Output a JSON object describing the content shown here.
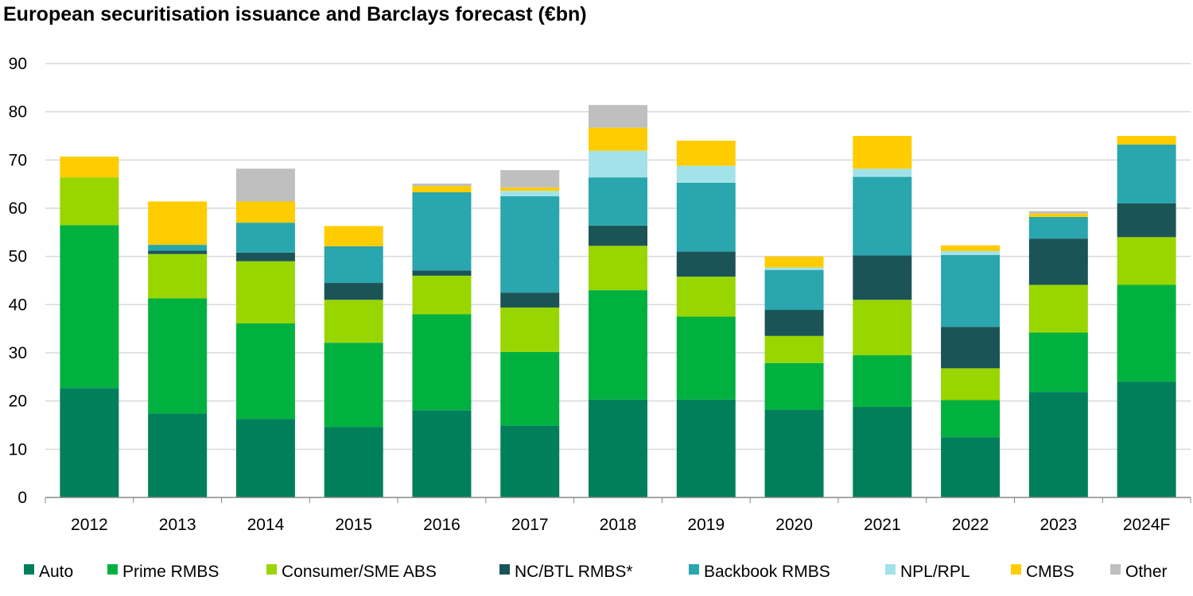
{
  "chart_data": {
    "type": "bar",
    "stacked": true,
    "title": "European securitisation issuance and Barclays forecast (€bn)",
    "xlabel": "",
    "ylabel": "",
    "ylim": [
      0,
      90
    ],
    "yticks": [
      0,
      10,
      20,
      30,
      40,
      50,
      60,
      70,
      80,
      90
    ],
    "grid": true,
    "legend_position": "bottom",
    "categories": [
      "2012",
      "2013",
      "2014",
      "2015",
      "2016",
      "2017",
      "2018",
      "2019",
      "2020",
      "2021",
      "2022",
      "2023",
      "2024F"
    ],
    "series": [
      {
        "name": "Auto",
        "color": "#007f5a",
        "values": [
          22.7,
          17.4,
          16.3,
          14.6,
          18.1,
          14.9,
          20.3,
          20.3,
          18.2,
          18.8,
          12.5,
          21.9,
          24.0
        ]
      },
      {
        "name": "Prime RMBS",
        "color": "#00b140",
        "values": [
          33.8,
          23.9,
          19.8,
          17.5,
          19.9,
          15.3,
          22.7,
          17.2,
          9.7,
          10.7,
          7.7,
          12.3,
          20.1
        ]
      },
      {
        "name": "Consumer/SME ABS",
        "color": "#99d600",
        "values": [
          9.9,
          9.2,
          12.9,
          8.9,
          8.0,
          9.2,
          9.2,
          8.3,
          5.6,
          11.5,
          6.6,
          9.9,
          9.9
        ]
      },
      {
        "name": "NC/BTL RMBS*",
        "color": "#1b5457",
        "values": [
          0,
          0.7,
          1.8,
          3.5,
          1.1,
          3.1,
          4.2,
          5.2,
          5.4,
          9.2,
          8.6,
          9.6,
          7.0
        ]
      },
      {
        "name": "Backbook RMBS",
        "color": "#29a6ae",
        "values": [
          0,
          1.2,
          6.2,
          7.6,
          16.2,
          20.0,
          10.0,
          14.3,
          8.3,
          16.3,
          14.9,
          4.5,
          12.2
        ]
      },
      {
        "name": "NPL/RPL",
        "color": "#a2e3e9",
        "values": [
          0,
          0,
          0,
          0,
          0,
          1.1,
          5.5,
          3.5,
          0.5,
          1.7,
          0.8,
          0,
          0
        ]
      },
      {
        "name": "CMBS",
        "color": "#ffcc00",
        "values": [
          4.3,
          9.0,
          4.4,
          4.2,
          1.3,
          0.7,
          4.8,
          5.2,
          2.3,
          6.8,
          1.2,
          0.7,
          1.8
        ]
      },
      {
        "name": "Other",
        "color": "#bfbfbf",
        "values": [
          0,
          0,
          6.8,
          0,
          0.5,
          3.6,
          4.7,
          0,
          0,
          0,
          0,
          0.5,
          0
        ]
      }
    ]
  }
}
